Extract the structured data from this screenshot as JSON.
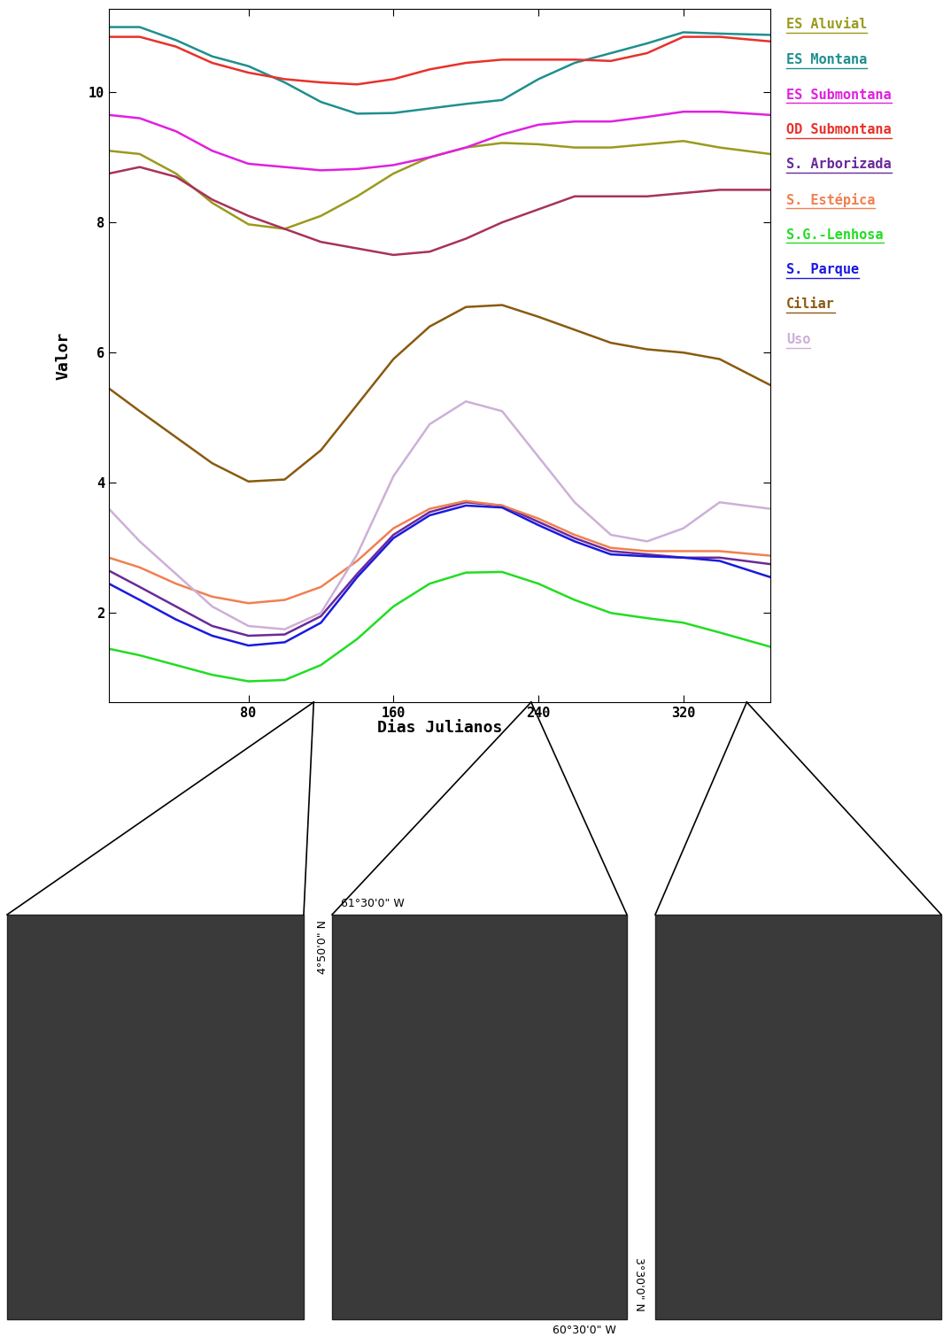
{
  "chart_data": {
    "type": "line",
    "xlabel": "Dias Julianos",
    "ylabel": "Valor",
    "x": [
      3,
      20,
      40,
      60,
      80,
      100,
      120,
      140,
      160,
      180,
      200,
      220,
      240,
      260,
      280,
      300,
      320,
      340,
      368
    ],
    "xlim": [
      3,
      368
    ],
    "xticks": [
      80,
      160,
      240,
      320
    ],
    "ylim": [
      0.63,
      11.28
    ],
    "yticks": [
      2,
      4,
      6,
      8,
      10
    ],
    "grid": false,
    "legend": "right",
    "series": [
      {
        "name": "ES Aluvial",
        "color": "#9a9a1e",
        "values": [
          9.1,
          9.05,
          8.75,
          8.3,
          7.97,
          7.9,
          8.1,
          8.4,
          8.75,
          9.0,
          9.15,
          9.22,
          9.2,
          9.15,
          9.15,
          9.2,
          9.25,
          9.15,
          9.05
        ]
      },
      {
        "name": "ES Montana",
        "color": "#1f8f8f",
        "values": [
          11.0,
          11.0,
          10.8,
          10.55,
          10.4,
          10.15,
          9.85,
          9.67,
          9.68,
          9.75,
          9.82,
          9.88,
          10.2,
          10.45,
          10.6,
          10.75,
          10.92,
          10.9,
          10.88
        ]
      },
      {
        "name": "ES Submontana",
        "color": "#e020e0",
        "values": [
          9.65,
          9.6,
          9.4,
          9.1,
          8.9,
          8.85,
          8.8,
          8.82,
          8.88,
          9.0,
          9.15,
          9.35,
          9.5,
          9.55,
          9.55,
          9.62,
          9.7,
          9.7,
          9.65
        ]
      },
      {
        "name": "OD Submontana",
        "color": "#e8312a",
        "values": [
          10.85,
          10.85,
          10.7,
          10.45,
          10.3,
          10.2,
          10.15,
          10.12,
          10.2,
          10.35,
          10.45,
          10.5,
          10.5,
          10.5,
          10.48,
          10.6,
          10.85,
          10.85,
          10.78
        ]
      },
      {
        "name": "S. Arborizada",
        "color": "#6a2a9a",
        "values": [
          2.65,
          2.4,
          2.1,
          1.8,
          1.65,
          1.67,
          1.95,
          2.6,
          3.2,
          3.55,
          3.7,
          3.65,
          3.4,
          3.15,
          2.95,
          2.9,
          2.85,
          2.85,
          2.75
        ]
      },
      {
        "name": "S. Estépica",
        "color": "#f08050",
        "values": [
          2.85,
          2.7,
          2.45,
          2.25,
          2.15,
          2.2,
          2.4,
          2.8,
          3.3,
          3.6,
          3.72,
          3.65,
          3.45,
          3.2,
          3.0,
          2.95,
          2.95,
          2.95,
          2.88
        ]
      },
      {
        "name": "S.G.-Lenhosa",
        "color": "#22dd22",
        "values": [
          1.45,
          1.35,
          1.2,
          1.05,
          0.95,
          0.97,
          1.2,
          1.6,
          2.1,
          2.45,
          2.62,
          2.63,
          2.45,
          2.2,
          2.0,
          1.92,
          1.85,
          1.7,
          1.48
        ]
      },
      {
        "name": "S. Parque",
        "color": "#1a1ae0",
        "values": [
          2.45,
          2.2,
          1.9,
          1.65,
          1.5,
          1.55,
          1.85,
          2.55,
          3.15,
          3.5,
          3.65,
          3.62,
          3.35,
          3.1,
          2.9,
          2.87,
          2.85,
          2.8,
          2.55
        ]
      },
      {
        "name": "Ciliar",
        "color": "#8a5a10",
        "values": [
          5.45,
          5.1,
          4.7,
          4.3,
          4.02,
          4.05,
          4.5,
          5.2,
          5.9,
          6.4,
          6.7,
          6.73,
          6.55,
          6.35,
          6.15,
          6.05,
          6.0,
          5.9,
          5.5
        ]
      },
      {
        "name": "Uso",
        "color": "#cdb0d8",
        "values": [
          3.6,
          3.1,
          2.6,
          2.1,
          1.8,
          1.75,
          2.0,
          2.9,
          4.1,
          4.9,
          5.25,
          5.1,
          4.4,
          3.7,
          3.2,
          3.1,
          3.3,
          3.7,
          3.6
        ]
      },
      {
        "name": null,
        "color": "#a8325a",
        "values": [
          8.75,
          8.85,
          8.7,
          8.35,
          8.1,
          7.9,
          7.7,
          7.6,
          7.5,
          7.55,
          7.75,
          8.0,
          8.2,
          8.4,
          8.4,
          8.4,
          8.45,
          8.5,
          8.5
        ]
      }
    ],
    "image_days": [
      116,
      236,
      355
    ]
  },
  "map_labels": {
    "top": "61°30'0\" W",
    "left": "4°50'0\" N",
    "right": "3°30'0\" N",
    "bottom": "60°30'0\" W"
  }
}
